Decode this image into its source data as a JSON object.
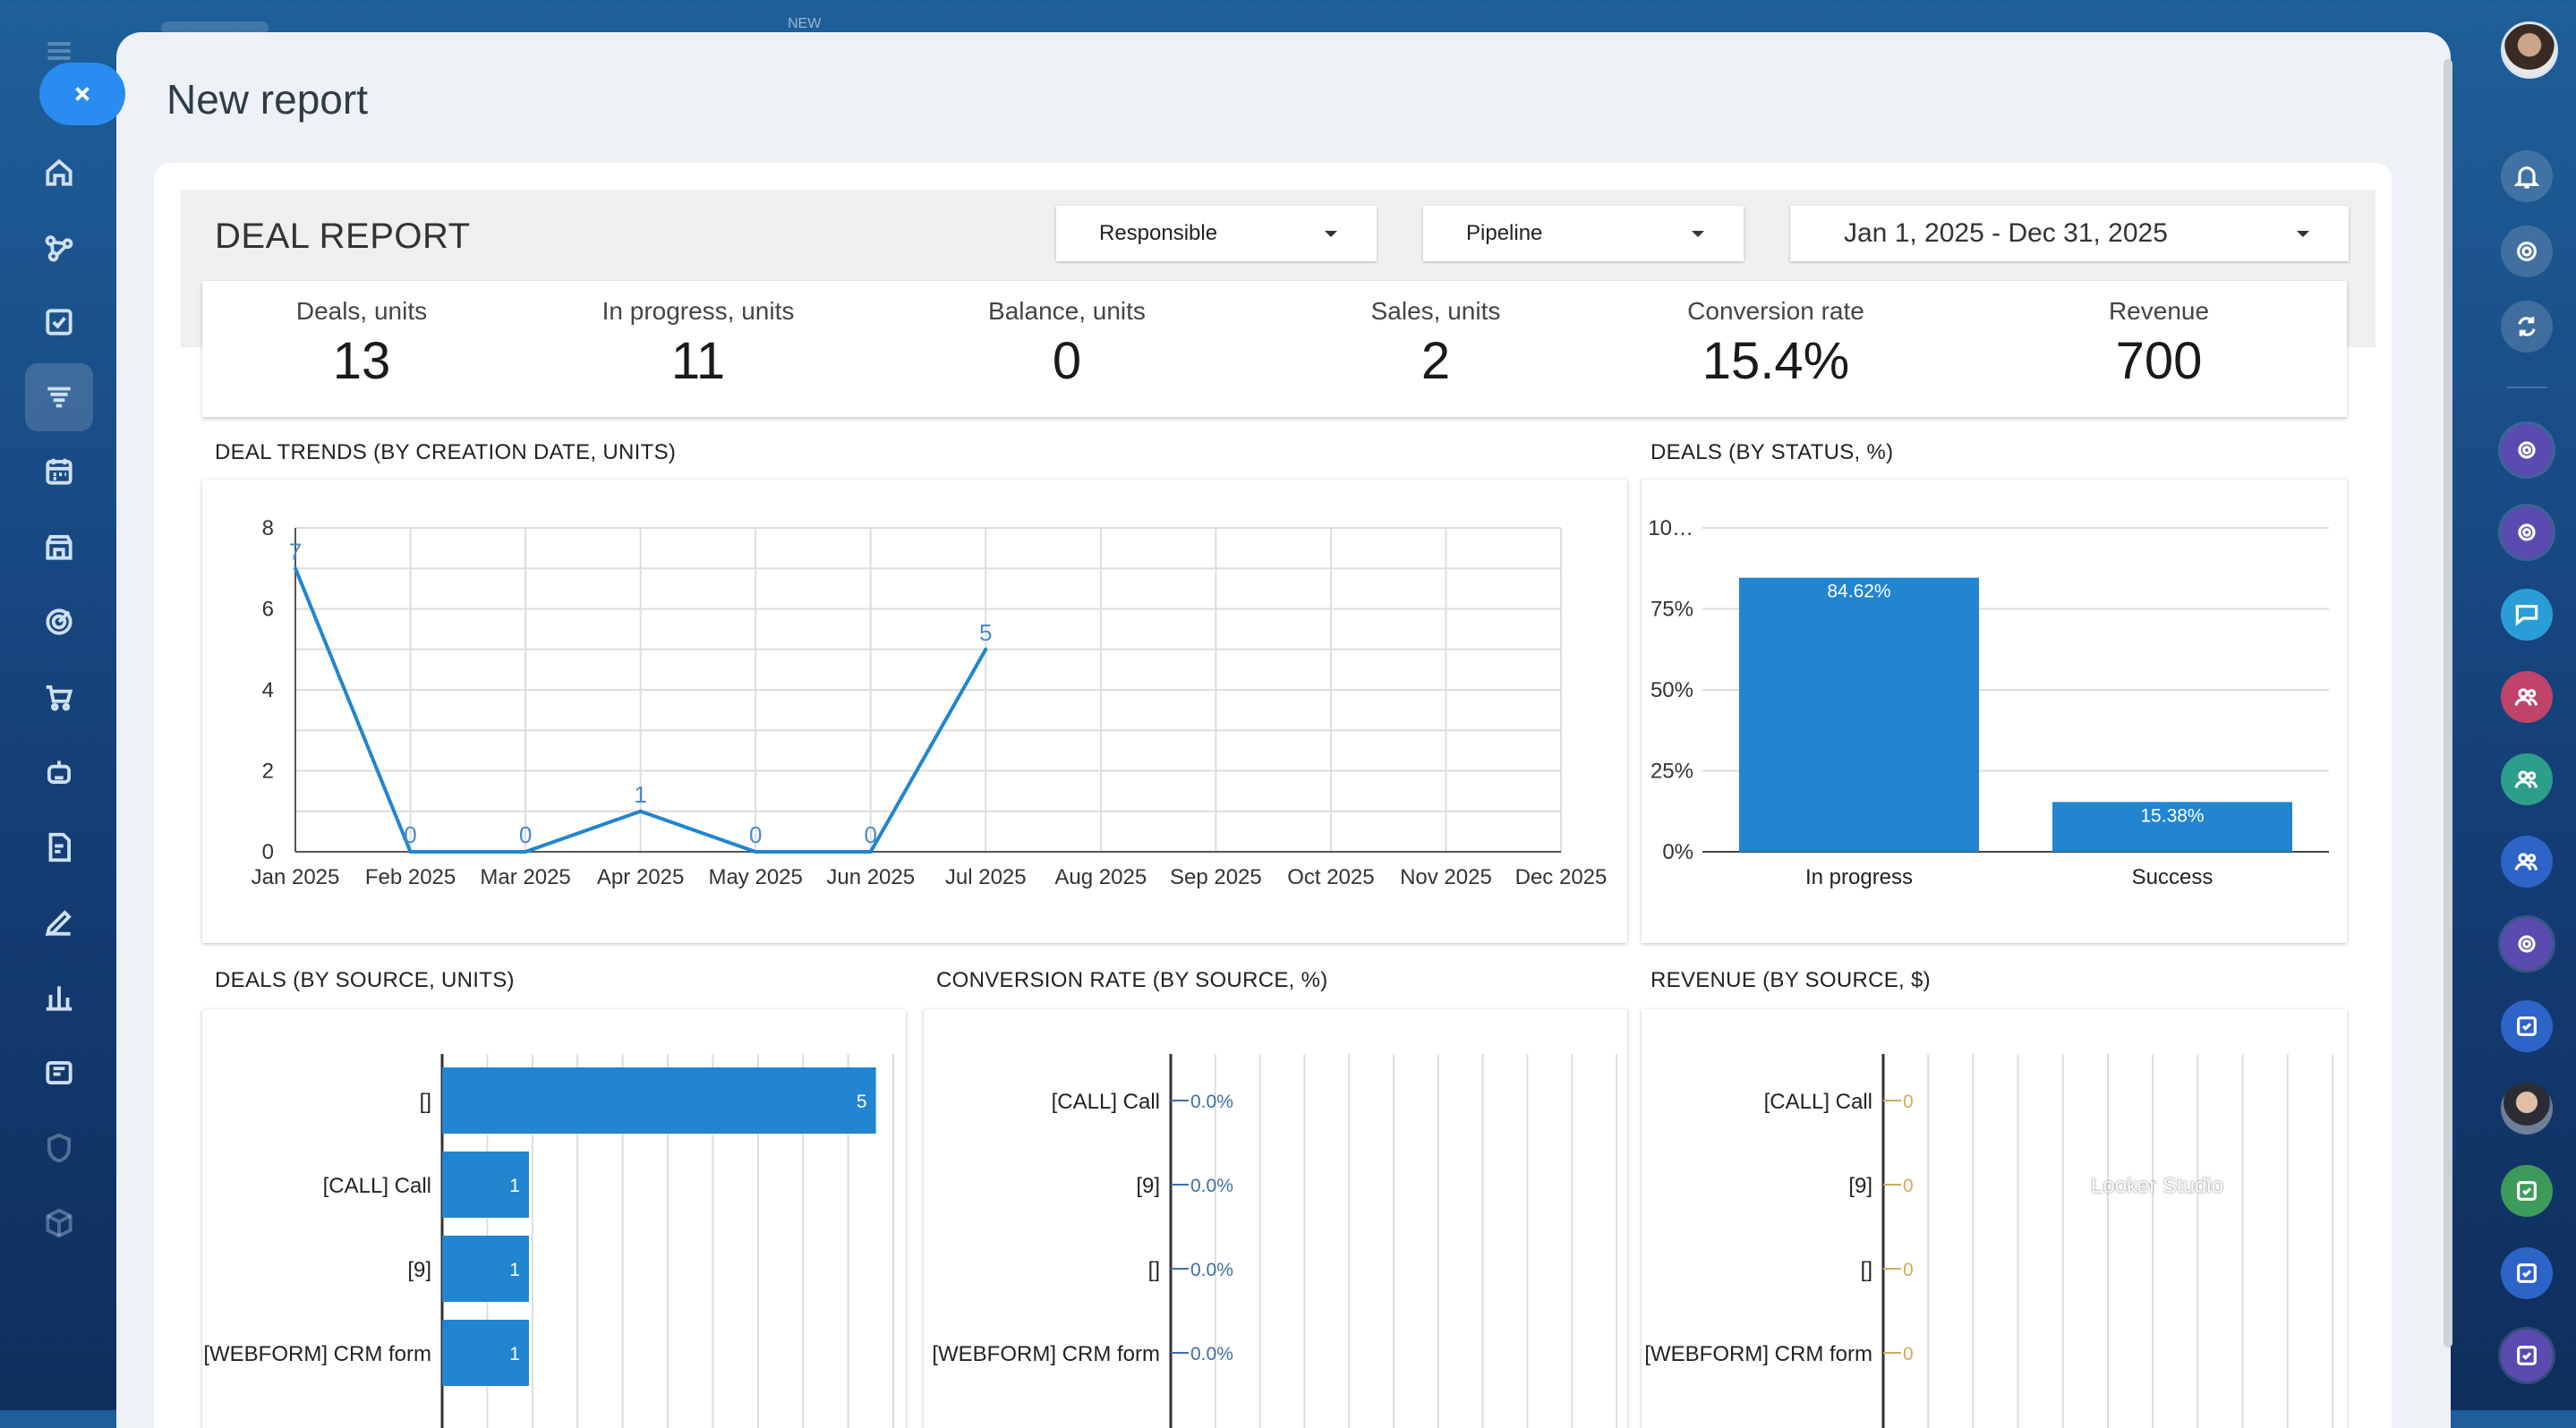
{
  "top_bar": {
    "new_label": "NEW"
  },
  "panel": {
    "title": "New report"
  },
  "report": {
    "title": "DEAL REPORT",
    "filters": {
      "responsible": "Responsible",
      "pipeline": "Pipeline",
      "date_range": "Jan 1, 2025 - Dec 31, 2025"
    },
    "kpis": [
      {
        "label": "Deals, units",
        "value": "13"
      },
      {
        "label": "In progress, units",
        "value": "11"
      },
      {
        "label": "Balance, units",
        "value": "0"
      },
      {
        "label": "Sales, units",
        "value": "2"
      },
      {
        "label": "Conversion rate",
        "value": "15.4%"
      },
      {
        "label": "Revenue",
        "value": "700"
      }
    ]
  },
  "watermark": "Looker Studio",
  "colors": {
    "series": "#2185d0",
    "accent": "#2a8cf0",
    "revenue_line": "#d4a85a"
  },
  "icons": {
    "left_rail": [
      "menu-icon",
      "home-icon",
      "workflow-icon",
      "tasks-icon",
      "reports-icon",
      "calendar-icon",
      "store-icon",
      "target-icon",
      "cart-icon",
      "robot-icon",
      "forms-icon",
      "pen-icon",
      "analytics-icon",
      "news-icon",
      "shield-icon",
      "box-icon"
    ],
    "right_rail": [
      "bell-icon",
      "open-channel-icon",
      "sync-icon",
      "channel-icon",
      "channel-icon",
      "chat-icon",
      "group-icon",
      "group-icon",
      "group-icon",
      "channel-icon",
      "task-icon",
      "task-icon",
      "task-icon",
      "task-icon"
    ]
  },
  "chart_data": [
    {
      "type": "line",
      "title": "DEAL TRENDS (BY CREATION DATE, UNITS)",
      "categories": [
        "Jan 2025",
        "Feb 2025",
        "Mar 2025",
        "Apr 2025",
        "May 2025",
        "Jun 2025",
        "Jul 2025",
        "Aug 2025",
        "Sep 2025",
        "Oct 2025",
        "Nov 2025",
        "Dec 2025"
      ],
      "series": [
        {
          "values": [
            7,
            0,
            0,
            1,
            0,
            0,
            5,
            null,
            null,
            null,
            null,
            null
          ]
        }
      ],
      "data_labels": [
        "7",
        "0",
        "0",
        "1",
        "0",
        "0",
        "5"
      ],
      "yticks": [
        "0",
        "2",
        "4",
        "6",
        "8"
      ],
      "ylim": [
        0,
        8
      ],
      "grid": true
    },
    {
      "type": "bar",
      "title": "DEALS (BY STATUS, %)",
      "categories": [
        "In progress",
        "Success"
      ],
      "values": [
        84.62,
        15.38
      ],
      "data_labels": [
        "84.62%",
        "15.38%"
      ],
      "yticks": [
        "0%",
        "25%",
        "50%",
        "75%",
        "10…"
      ],
      "ylim": [
        0,
        100
      ],
      "grid": true
    },
    {
      "type": "bar",
      "orientation": "horizontal",
      "title": "DEALS (BY SOURCE, UNITS)",
      "categories": [
        "[]",
        "[CALL] Call",
        "[9]",
        "[WEBFORM] CRM form"
      ],
      "values": [
        5,
        1,
        1,
        1
      ],
      "data_labels": [
        "5",
        "1",
        "1",
        "1"
      ],
      "xlim": [
        0,
        5.2
      ],
      "grid": true
    },
    {
      "type": "bar",
      "orientation": "horizontal",
      "title": "CONVERSION RATE (BY SOURCE, %)",
      "categories": [
        "[CALL] Call",
        "[9]",
        "[]",
        "[WEBFORM] CRM form"
      ],
      "values": [
        0.0,
        0.0,
        0.0,
        0.0
      ],
      "data_labels": [
        "0.0%",
        "0.0%",
        "0.0%",
        "0.0%"
      ],
      "grid": true
    },
    {
      "type": "bar",
      "orientation": "horizontal",
      "title": "REVENUE (BY SOURCE, $)",
      "categories": [
        "[CALL] Call",
        "[9]",
        "[]",
        "[WEBFORM] CRM form"
      ],
      "values": [
        0,
        0,
        0,
        0
      ],
      "data_labels": [
        "0",
        "0",
        "0",
        "0"
      ],
      "grid": true
    }
  ]
}
